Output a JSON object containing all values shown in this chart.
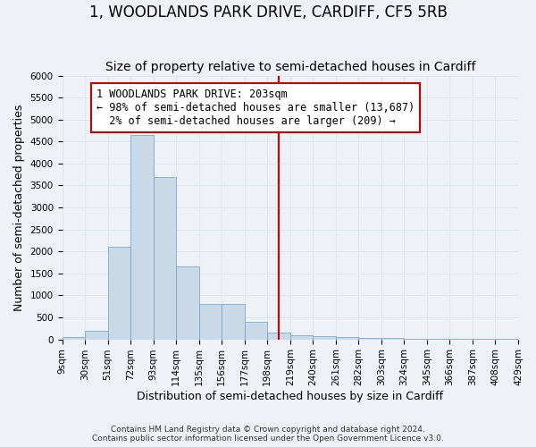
{
  "title": "1, WOODLANDS PARK DRIVE, CARDIFF, CF5 5RB",
  "subtitle": "Size of property relative to semi-detached houses in Cardiff",
  "xlabel": "Distribution of semi-detached houses by size in Cardiff",
  "ylabel": "Number of semi-detached properties",
  "footnote": "Contains HM Land Registry data © Crown copyright and database right 2024.\nContains public sector information licensed under the Open Government Licence v3.0.",
  "bin_labels": [
    "9sqm",
    "30sqm",
    "51sqm",
    "72sqm",
    "93sqm",
    "114sqm",
    "135sqm",
    "156sqm",
    "177sqm",
    "198sqm",
    "219sqm",
    "240sqm",
    "261sqm",
    "282sqm",
    "303sqm",
    "324sqm",
    "345sqm",
    "366sqm",
    "387sqm",
    "408sqm",
    "429sqm"
  ],
  "bar_heights": [
    50,
    200,
    2100,
    4650,
    3700,
    1650,
    800,
    800,
    400,
    150,
    100,
    75,
    50,
    40,
    30,
    20,
    15,
    10,
    5,
    3
  ],
  "bar_color": "#c9d9e8",
  "bar_edge_color": "#6aa0c7",
  "grid_color": "#dde8f0",
  "property_line_x": 9.5,
  "property_size": "203sqm",
  "smaller_pct": 98,
  "smaller_count": 13687,
  "larger_pct": 2,
  "larger_count": 209,
  "annotation_box_color": "#ffffff",
  "annotation_box_edge_color": "#cc0000",
  "vline_color": "#cc0000",
  "ylim": [
    0,
    6000
  ],
  "yticks": [
    0,
    500,
    1000,
    1500,
    2000,
    2500,
    3000,
    3500,
    4000,
    4500,
    5000,
    5500,
    6000
  ],
  "background_color": "#eef2f7",
  "title_fontsize": 12,
  "subtitle_fontsize": 10,
  "axis_label_fontsize": 9,
  "tick_fontsize": 7.5,
  "annotation_fontsize": 8.5
}
